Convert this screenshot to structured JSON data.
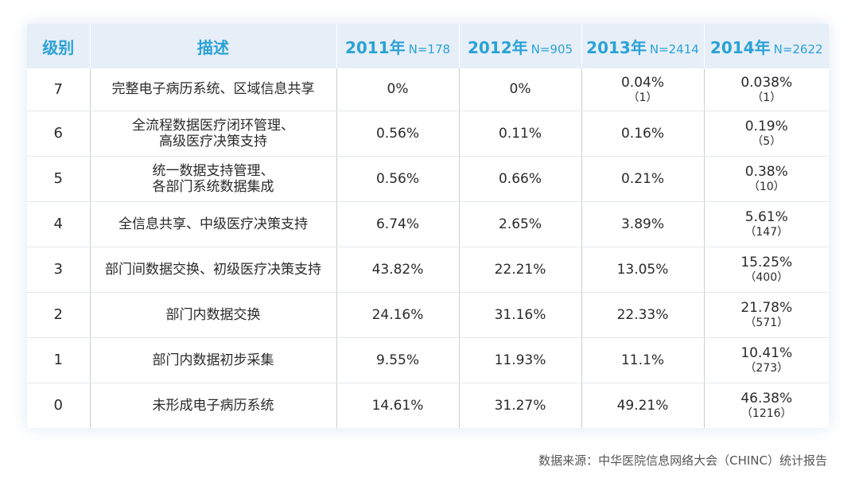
{
  "header": {
    "level": "级别",
    "desc": "描述",
    "years": [
      {
        "year": "2011年",
        "n": "N=178"
      },
      {
        "year": "2012年",
        "n": "N=905"
      },
      {
        "year": "2013年",
        "n": "N=2414"
      },
      {
        "year": "2014年",
        "n": "N=2622"
      }
    ]
  },
  "rows": [
    {
      "level": "7",
      "desc1": "完整电子病历系统、区域信息共享",
      "desc2": "",
      "v2011": "0%",
      "v2012": "0%",
      "v2013": "0.04%",
      "v2013_sub": "（1）",
      "v2014": "0.038%",
      "v2014_sub": "（1）"
    },
    {
      "level": "6",
      "desc1": "全流程数据医疗闭环管理、",
      "desc2": "高级医疗决策支持",
      "v2011": "0.56%",
      "v2012": "0.11%",
      "v2013": "0.16%",
      "v2013_sub": "",
      "v2014": "0.19%",
      "v2014_sub": "（5）"
    },
    {
      "level": "5",
      "desc1": "统一数据支持管理、",
      "desc2": "各部门系统数据集成",
      "v2011": "0.56%",
      "v2012": "0.66%",
      "v2013": "0.21%",
      "v2013_sub": "",
      "v2014": "0.38%",
      "v2014_sub": "（10）"
    },
    {
      "level": "4",
      "desc1": "全信息共享、中级医疗决策支持",
      "desc2": "",
      "v2011": "6.74%",
      "v2012": "2.65%",
      "v2013": "3.89%",
      "v2013_sub": "",
      "v2014": "5.61%",
      "v2014_sub": "（147）"
    },
    {
      "level": "3",
      "desc1": "部门间数据交换、初级医疗决策支持",
      "desc2": "",
      "v2011": "43.82%",
      "v2012": "22.21%",
      "v2013": "13.05%",
      "v2013_sub": "",
      "v2014": "15.25%",
      "v2014_sub": "（400）"
    },
    {
      "level": "2",
      "desc1": "部门内数据交换",
      "desc2": "",
      "v2011": "24.16%",
      "v2012": "31.16%",
      "v2013": "22.33%",
      "v2013_sub": "",
      "v2014": "21.78%",
      "v2014_sub": "（571）"
    },
    {
      "level": "1",
      "desc1": "部门内数据初步采集",
      "desc2": "",
      "v2011": "9.55%",
      "v2012": "11.93%",
      "v2013": "11.1%",
      "v2013_sub": "",
      "v2014": "10.41%",
      "v2014_sub": "（273）"
    },
    {
      "level": "0",
      "desc1": "未形成电子病历系统",
      "desc2": "",
      "v2011": "14.61%",
      "v2012": "31.27%",
      "v2013": "49.21%",
      "v2013_sub": "",
      "v2014": "46.38%",
      "v2014_sub": "（1216）"
    }
  ],
  "source": "数据来源：中华医院信息网络大会（CHINC）统计报告"
}
